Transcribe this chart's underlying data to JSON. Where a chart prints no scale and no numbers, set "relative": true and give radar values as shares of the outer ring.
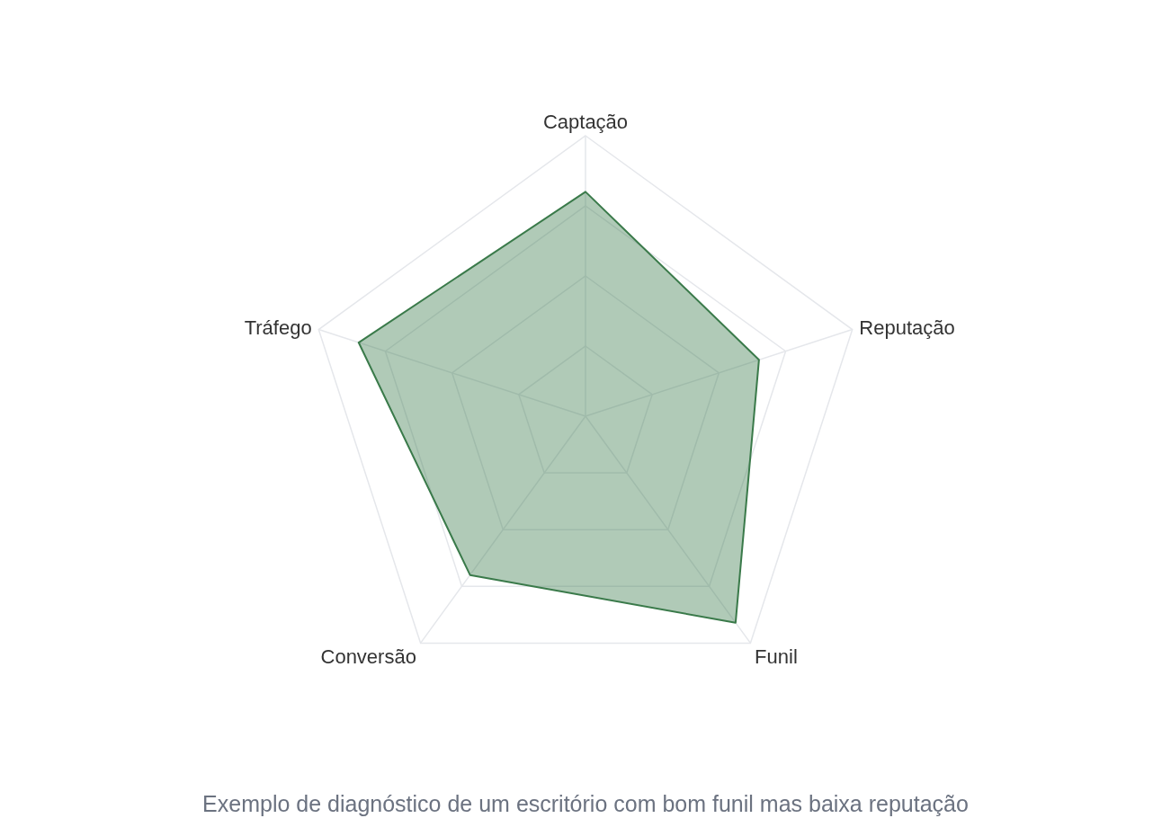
{
  "chart_data": {
    "type": "radar",
    "relative": true,
    "grid": true,
    "categories": [
      "Captação",
      "Reputação",
      "Funil",
      "Conversão",
      "Tráfego"
    ],
    "series": [
      {
        "color": "#3a7a4a",
        "values": [
          0.8,
          0.65,
          0.91,
          0.7,
          0.85
        ]
      }
    ],
    "annotations": [
      "Exemplo de diagnóstico de um escritório com bom funil mas baixa reputação"
    ]
  }
}
